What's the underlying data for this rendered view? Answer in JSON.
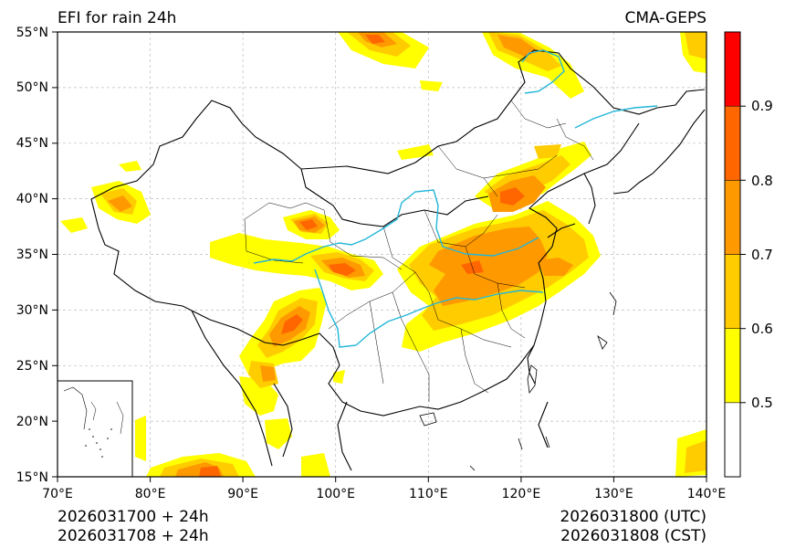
{
  "title": "EFI for rain 24h",
  "model": "CMA-GEPS",
  "init": {
    "utc": "2026031700 + 24h",
    "cst": "2026031708 + 24h"
  },
  "valid": {
    "utc": "2026031800 (UTC)",
    "cst": "2026031808 (CST)"
  },
  "map": {
    "lon_range": [
      70,
      140
    ],
    "lat_range": [
      15,
      55
    ],
    "lon_ticks": [
      "70°E",
      "80°E",
      "90°E",
      "100°E",
      "110°E",
      "120°E",
      "130°E",
      "140°E"
    ],
    "lat_ticks": [
      "15°N",
      "20°N",
      "25°N",
      "30°N",
      "35°N",
      "40°N",
      "45°N",
      "50°N",
      "55°N"
    ],
    "gridlines": true,
    "inset": "south-china-sea"
  },
  "colorbar": {
    "bins": [
      {
        "from": 0.4,
        "to": 0.5,
        "color": "#ffffff"
      },
      {
        "from": 0.5,
        "to": 0.6,
        "color": "#ffff00"
      },
      {
        "from": 0.6,
        "to": 0.7,
        "color": "#ffcc00"
      },
      {
        "from": 0.7,
        "to": 0.8,
        "color": "#ff9900"
      },
      {
        "from": 0.8,
        "to": 0.9,
        "color": "#ff6600"
      },
      {
        "from": 0.9,
        "to": 1.0,
        "color": "#ff0000"
      }
    ],
    "labels": [
      "0.5",
      "0.6",
      "0.7",
      "0.8",
      "0.9"
    ]
  },
  "colors": {
    "river": "#22b6d8",
    "border": "#000000",
    "grid": "#bbbbbb"
  }
}
